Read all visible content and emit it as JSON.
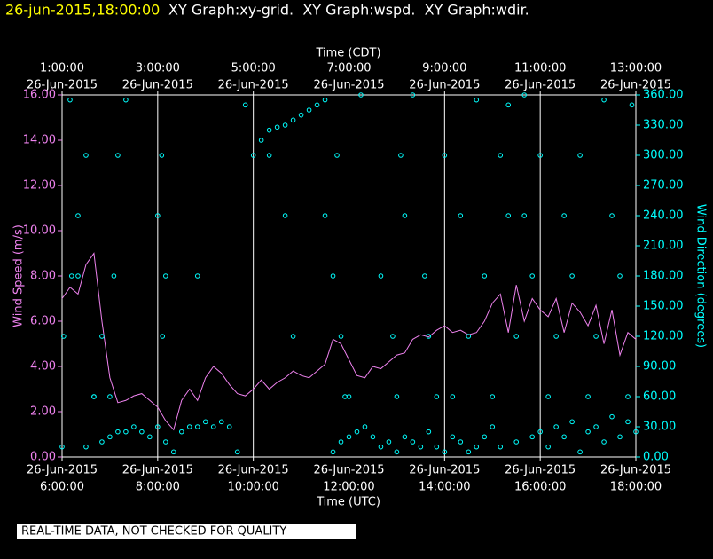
{
  "chart_data": {
    "type": "line",
    "title": "26-jun-2015,18:00:00",
    "subtitle": "XY Graph:xy-grid.  XY Graph:wspd.  XY Graph:wdir.",
    "note": "REAL-TIME DATA, NOT CHECKED FOR QUALITY",
    "xlabel": "Time (UTC)",
    "x2label": "Time (CDT)",
    "ylabel": "Wind Speed (m/s)",
    "y2label": "Wind Direction (degrees)",
    "xlim": [
      360,
      1080
    ],
    "xticks": [
      {
        "value": 360,
        "label": [
          "26-Jun-2015",
          "6:00:00"
        ]
      },
      {
        "value": 480,
        "label": [
          "26-Jun-2015",
          "8:00:00"
        ]
      },
      {
        "value": 600,
        "label": [
          "26-Jun-2015",
          "10:00:00"
        ]
      },
      {
        "value": 720,
        "label": [
          "26-Jun-2015",
          "12:00:00"
        ]
      },
      {
        "value": 840,
        "label": [
          "26-Jun-2015",
          "14:00:00"
        ]
      },
      {
        "value": 960,
        "label": [
          "26-Jun-2015",
          "16:00:00"
        ]
      },
      {
        "value": 1080,
        "label": [
          "26-Jun-2015",
          "18:00:00"
        ]
      }
    ],
    "x2ticks": [
      {
        "value": 360,
        "label": [
          "1:00:00",
          "26-Jun-2015"
        ]
      },
      {
        "value": 480,
        "label": [
          "3:00:00",
          "26-Jun-2015"
        ]
      },
      {
        "value": 600,
        "label": [
          "5:00:00",
          "26-Jun-2015"
        ]
      },
      {
        "value": 720,
        "label": [
          "7:00:00",
          "26-Jun-2015"
        ]
      },
      {
        "value": 840,
        "label": [
          "9:00:00",
          "26-Jun-2015"
        ]
      },
      {
        "value": 960,
        "label": [
          "11:00:00",
          "26-Jun-2015"
        ]
      },
      {
        "value": 1080,
        "label": [
          "13:00:00",
          "26-Jun-2015"
        ]
      }
    ],
    "ylim": [
      0,
      16
    ],
    "yticks": [
      {
        "value": 0,
        "label": "0.00"
      },
      {
        "value": 2,
        "label": "2.00"
      },
      {
        "value": 4,
        "label": "4.00"
      },
      {
        "value": 6,
        "label": "6.00"
      },
      {
        "value": 8,
        "label": "8.00"
      },
      {
        "value": 10,
        "label": "10.00"
      },
      {
        "value": 12,
        "label": "12.00"
      },
      {
        "value": 14,
        "label": "14.00"
      },
      {
        "value": 16,
        "label": "16.00"
      }
    ],
    "y2lim": [
      0,
      360
    ],
    "y2ticks": [
      {
        "value": 0,
        "label": "0.00"
      },
      {
        "value": 30,
        "label": "30.00"
      },
      {
        "value": 60,
        "label": "60.00"
      },
      {
        "value": 90,
        "label": "90.00"
      },
      {
        "value": 120,
        "label": "120.00"
      },
      {
        "value": 150,
        "label": "150.00"
      },
      {
        "value": 180,
        "label": "180.00"
      },
      {
        "value": 210,
        "label": "210.00"
      },
      {
        "value": 240,
        "label": "240.00"
      },
      {
        "value": 270,
        "label": "270.00"
      },
      {
        "value": 300,
        "label": "300.00"
      },
      {
        "value": 330,
        "label": "330.00"
      },
      {
        "value": 360,
        "label": "360.00"
      }
    ],
    "grid": true,
    "series": [
      {
        "type": "line",
        "color": "#ee82ee",
        "x": [
          360,
          370,
          380,
          390,
          400,
          410,
          420,
          430,
          440,
          450,
          460,
          470,
          480,
          490,
          500,
          510,
          520,
          530,
          540,
          550,
          560,
          570,
          580,
          590,
          600,
          610,
          620,
          630,
          640,
          650,
          660,
          670,
          680,
          690,
          700,
          710,
          720,
          730,
          740,
          750,
          760,
          770,
          780,
          790,
          800,
          810,
          820,
          830,
          840,
          850,
          860,
          870,
          880,
          890,
          900,
          910,
          920,
          930,
          940,
          950,
          960,
          970,
          980,
          990,
          1000,
          1010,
          1020,
          1030,
          1040,
          1050,
          1060,
          1070,
          1080
        ],
        "values": [
          7.0,
          7.5,
          7.2,
          8.5,
          9.0,
          6.0,
          3.5,
          2.4,
          2.5,
          2.7,
          2.8,
          2.5,
          2.2,
          1.6,
          1.2,
          2.5,
          3.0,
          2.5,
          3.5,
          4.0,
          3.7,
          3.2,
          2.8,
          2.7,
          3.0,
          3.4,
          3.0,
          3.3,
          3.5,
          3.8,
          3.6,
          3.5,
          3.8,
          4.1,
          5.2,
          5.0,
          4.3,
          3.6,
          3.5,
          4.0,
          3.9,
          4.2,
          4.5,
          4.6,
          5.2,
          5.4,
          5.3,
          5.6,
          5.8,
          5.5,
          5.6,
          5.4,
          5.5,
          6.0,
          6.8,
          7.2,
          5.5,
          7.6,
          6.0,
          7.0,
          6.5,
          6.2,
          7.0,
          5.5,
          6.8,
          6.4,
          5.8,
          6.7,
          5.0,
          6.5,
          4.5,
          5.5,
          5.2
        ]
      },
      {
        "type": "scatter",
        "color": "#00ffff",
        "axis": "y2",
        "x": [
          360,
          370,
          380,
          390,
          400,
          410,
          420,
          430,
          440,
          450,
          460,
          470,
          480,
          490,
          500,
          510,
          520,
          530,
          540,
          550,
          560,
          570,
          580,
          590,
          600,
          610,
          620,
          630,
          640,
          650,
          660,
          670,
          680,
          690,
          700,
          710,
          720,
          730,
          740,
          750,
          760,
          770,
          780,
          790,
          800,
          810,
          820,
          830,
          840,
          850,
          860,
          870,
          880,
          890,
          900,
          910,
          920,
          930,
          940,
          950,
          960,
          970,
          980,
          990,
          1000,
          1010,
          1020,
          1030,
          1040,
          1050,
          1060,
          1070,
          1080,
          362,
          372,
          380,
          390,
          400,
          410,
          420,
          425,
          430,
          440,
          480,
          485,
          486,
          490,
          530,
          620,
          640,
          650,
          690,
          700,
          705,
          710,
          715,
          720,
          735,
          760,
          775,
          780,
          785,
          790,
          800,
          815,
          820,
          830,
          840,
          850,
          860,
          870,
          880,
          890,
          900,
          910,
          920,
          930,
          940,
          950,
          960,
          970,
          980,
          990,
          1000,
          1010,
          1020,
          1030,
          1040,
          1050,
          1060,
          1070,
          1075
        ],
        "values": [
          10,
          355,
          180,
          10,
          60,
          15,
          20,
          25,
          25,
          30,
          25,
          20,
          30,
          15,
          5,
          25,
          30,
          30,
          35,
          30,
          35,
          30,
          5,
          350,
          300,
          315,
          325,
          328,
          330,
          335,
          340,
          345,
          350,
          355,
          5,
          15,
          20,
          25,
          30,
          20,
          10,
          15,
          5,
          20,
          15,
          10,
          25,
          10,
          5,
          20,
          15,
          5,
          10,
          20,
          30,
          10,
          350,
          15,
          240,
          20,
          25,
          10,
          30,
          20,
          35,
          5,
          25,
          30,
          15,
          40,
          20,
          35,
          25,
          120,
          180,
          240,
          300,
          60,
          120,
          60,
          180,
          300,
          355,
          240,
          300,
          120,
          180,
          180,
          300,
          240,
          120,
          240,
          180,
          300,
          120,
          60,
          60,
          360,
          180,
          120,
          60,
          300,
          240,
          360,
          180,
          120,
          60,
          300,
          60,
          240,
          120,
          355,
          180,
          60,
          300,
          240,
          120,
          360,
          180,
          300,
          60,
          120,
          240,
          180,
          300,
          60,
          120,
          355,
          240,
          180,
          60,
          350
        ]
      }
    ]
  }
}
